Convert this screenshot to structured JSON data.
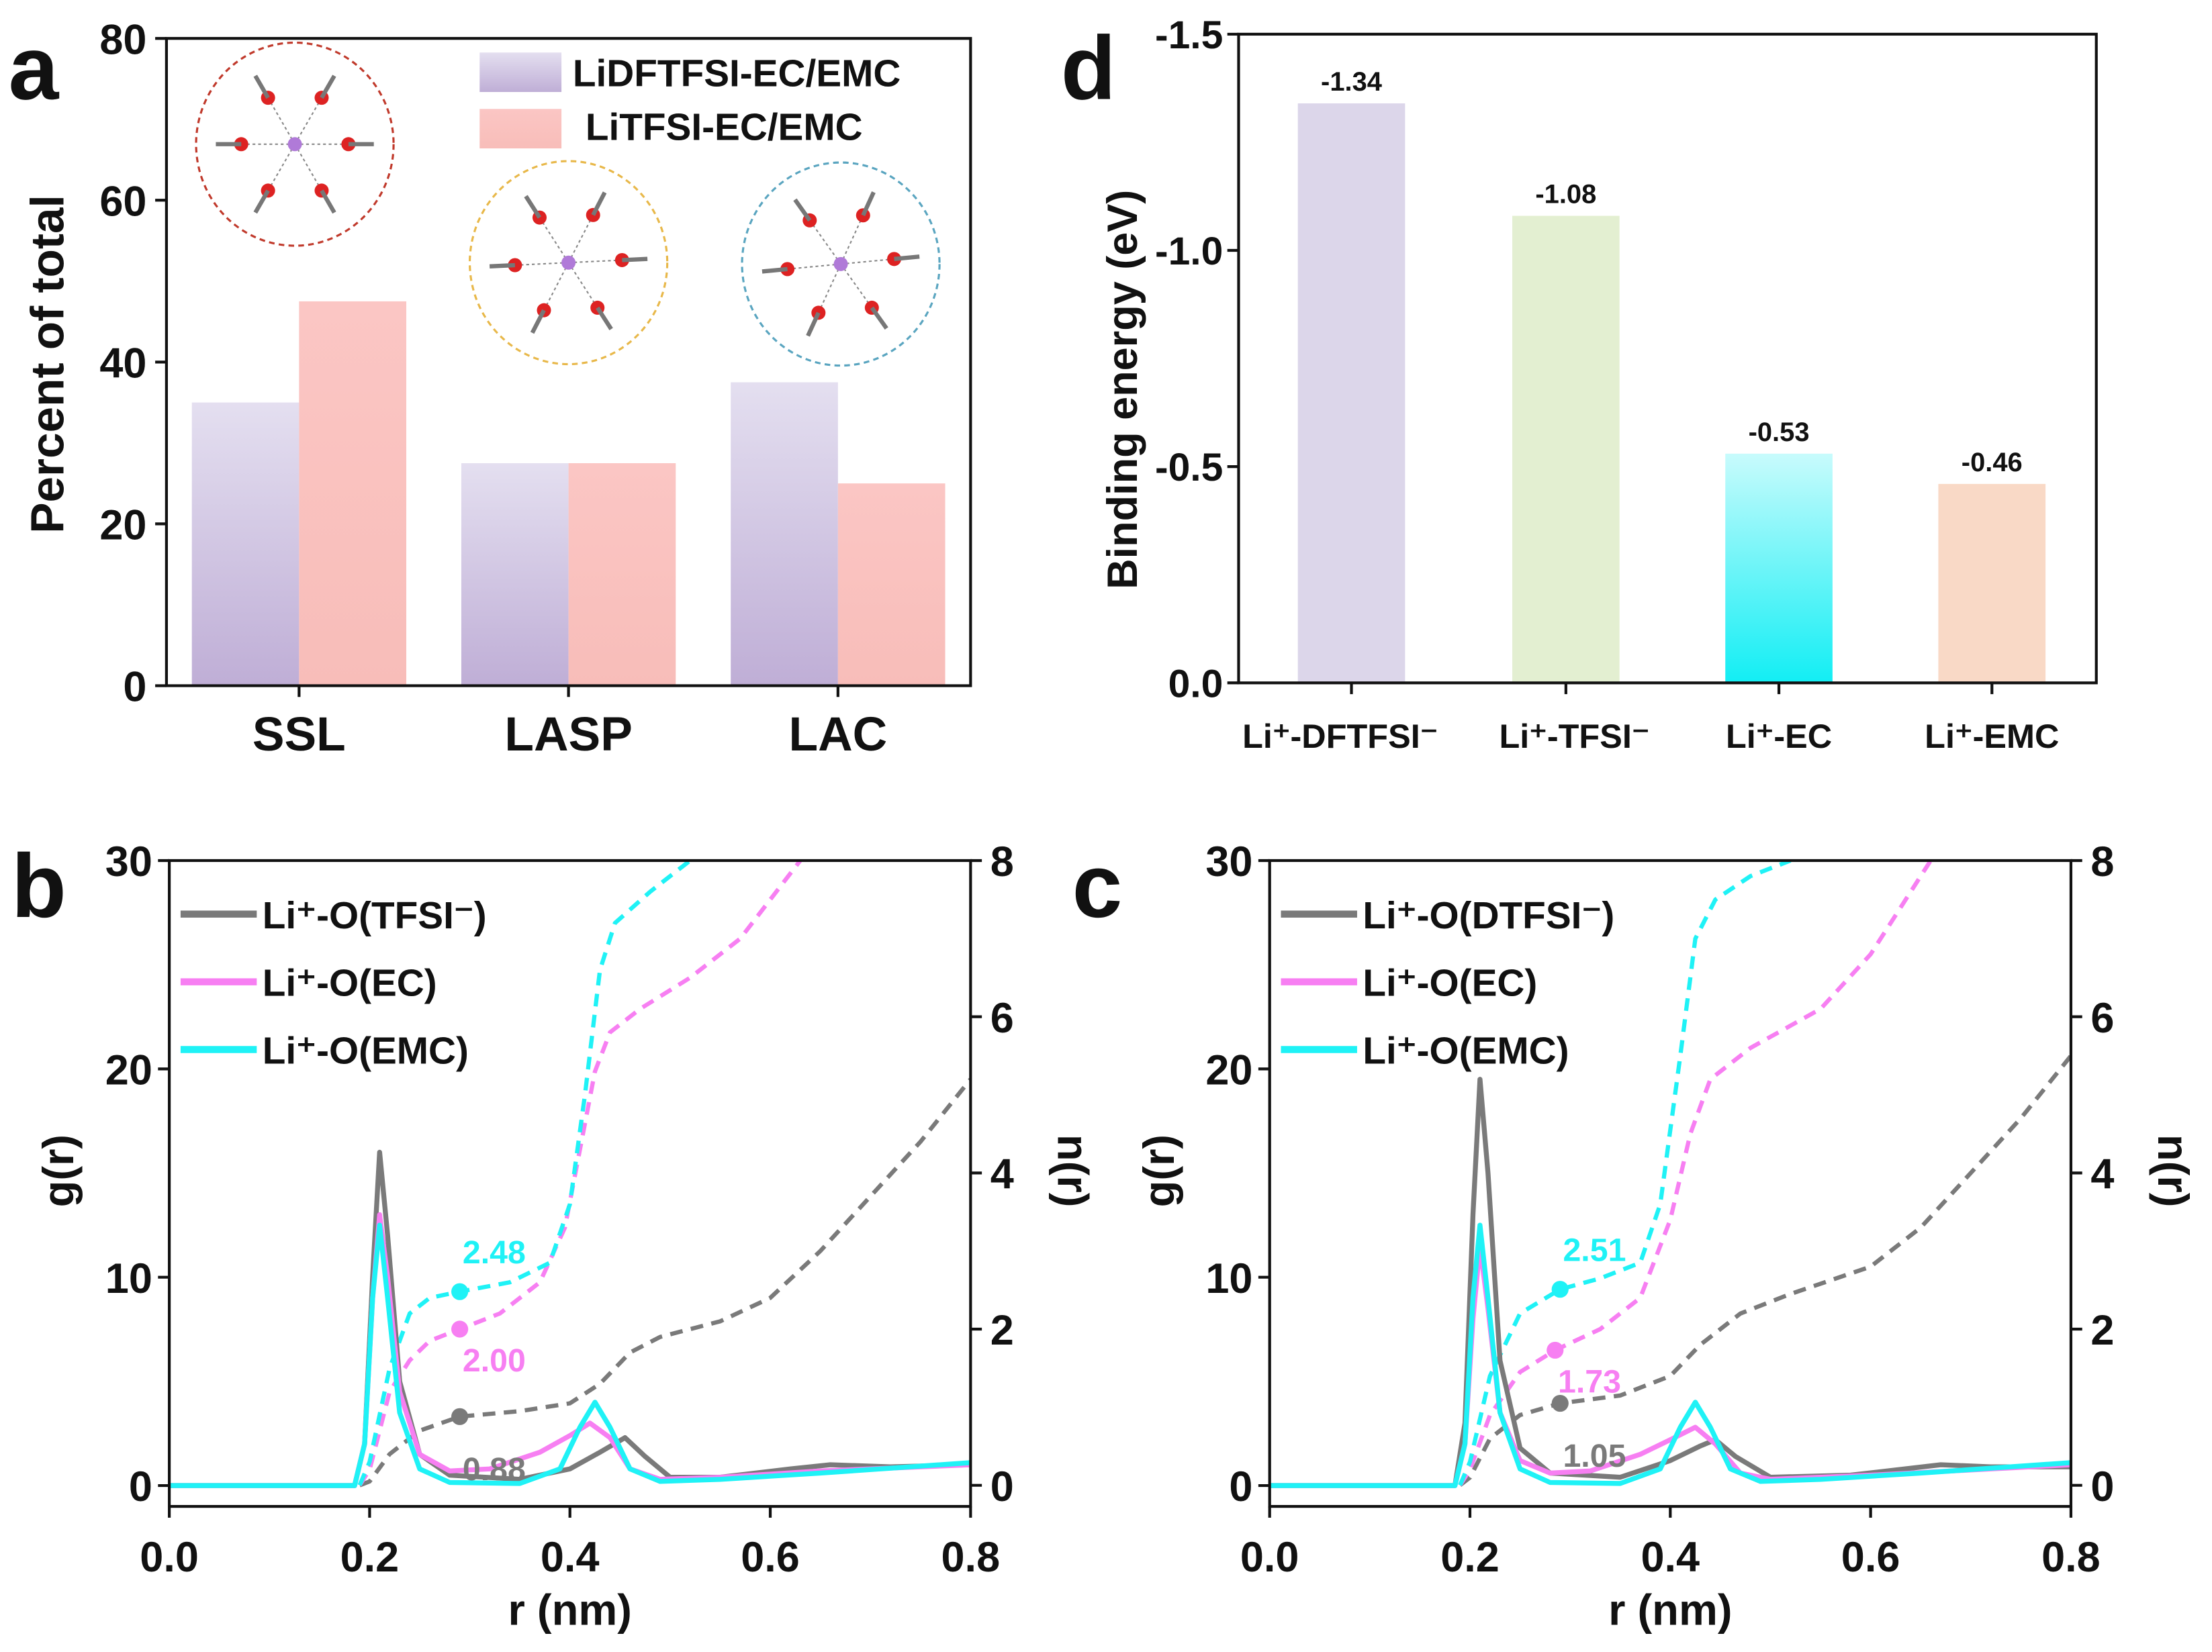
{
  "chart_data": [
    {
      "panel": "a",
      "type": "bar",
      "title": "",
      "xlabel": "",
      "ylabel": "Percent of total",
      "ylim": [
        0,
        80
      ],
      "yticks": [
        0,
        20,
        40,
        60,
        80
      ],
      "categories": [
        "SSL",
        "LASP",
        "LAC"
      ],
      "series": [
        {
          "name": "LiDFTFSI-EC/EMC",
          "values": [
            35,
            27.5,
            37.5
          ],
          "color": "#c3b2d8"
        },
        {
          "name": "LiTFSI-EC/EMC",
          "values": [
            47.5,
            27.5,
            25
          ],
          "color": "#f9c0bd"
        }
      ],
      "legend": "top-right",
      "insets": [
        "SSL solvation structure",
        "LASP solvation structure",
        "LAC solvation structure"
      ]
    },
    {
      "panel": "d",
      "type": "bar",
      "xlabel": "",
      "ylabel": "Binding energy (eV)",
      "ylim": [
        0.0,
        -1.5
      ],
      "yticks": [
        0.0,
        -0.5,
        -1.0,
        -1.5
      ],
      "ytick_labels": [
        "0.0",
        "-0.5",
        "-1.0",
        "-1.5"
      ],
      "categories": [
        "Li⁺-DFTFSI⁻",
        "Li⁺-TFSI⁻",
        "Li⁺-EC",
        "Li⁺-EMC"
      ],
      "values": [
        -1.34,
        -1.08,
        -0.53,
        -0.46
      ],
      "data_labels": [
        "-1.34",
        "-1.08",
        "-0.53",
        "-0.46"
      ],
      "colors": [
        "#dcd6ea",
        "#e3efd1",
        "#1ff2f6",
        "#f9d9c6"
      ]
    },
    {
      "panel": "b",
      "type": "line",
      "xlabel": "r (nm)",
      "ylabel": "g(r)",
      "y2label": "n(r)",
      "xlim": [
        0,
        0.8
      ],
      "ylim": [
        -1,
        30
      ],
      "y2lim": [
        -0.27,
        8
      ],
      "xticks": [
        "0.0",
        "0.2",
        "0.4",
        "0.6",
        "0.8"
      ],
      "yticks": [
        "0",
        "10",
        "20",
        "30"
      ],
      "y2ticks": [
        "0",
        "2",
        "4",
        "6",
        "8"
      ],
      "legend": "top-left",
      "series": [
        {
          "name": "Li⁺-O(TFSI⁻)",
          "color": "#7a7a7a",
          "g": [
            [
              0,
              0
            ],
            [
              0.185,
              0
            ],
            [
              0.195,
              2
            ],
            [
              0.203,
              10
            ],
            [
              0.21,
              16
            ],
            [
              0.218,
              12
            ],
            [
              0.23,
              5
            ],
            [
              0.25,
              1.5
            ],
            [
              0.28,
              0.5
            ],
            [
              0.35,
              0.3
            ],
            [
              0.4,
              0.8
            ],
            [
              0.43,
              1.6
            ],
            [
              0.455,
              2.3
            ],
            [
              0.475,
              1.4
            ],
            [
              0.5,
              0.4
            ],
            [
              0.55,
              0.4
            ],
            [
              0.62,
              0.8
            ],
            [
              0.66,
              1.0
            ],
            [
              0.72,
              0.9
            ],
            [
              0.8,
              1.0
            ]
          ],
          "n": [
            [
              0,
              0
            ],
            [
              0.19,
              0
            ],
            [
              0.2,
              0.05
            ],
            [
              0.22,
              0.4
            ],
            [
              0.25,
              0.7
            ],
            [
              0.29,
              0.88
            ],
            [
              0.35,
              0.95
            ],
            [
              0.4,
              1.05
            ],
            [
              0.43,
              1.3
            ],
            [
              0.46,
              1.7
            ],
            [
              0.49,
              1.9
            ],
            [
              0.55,
              2.1
            ],
            [
              0.6,
              2.4
            ],
            [
              0.65,
              3.0
            ],
            [
              0.7,
              3.7
            ],
            [
              0.75,
              4.4
            ],
            [
              0.8,
              5.2
            ]
          ],
          "marker": {
            "r": 0.29,
            "n": 0.88,
            "label": "0.88"
          }
        },
        {
          "name": "Li⁺-O(EC)",
          "color": "#f77ff2",
          "g": [
            [
              0,
              0
            ],
            [
              0.185,
              0
            ],
            [
              0.195,
              2
            ],
            [
              0.203,
              9
            ],
            [
              0.21,
              13
            ],
            [
              0.218,
              10
            ],
            [
              0.23,
              4.5
            ],
            [
              0.25,
              1.5
            ],
            [
              0.28,
              0.7
            ],
            [
              0.32,
              0.8
            ],
            [
              0.37,
              1.6
            ],
            [
              0.4,
              2.4
            ],
            [
              0.42,
              3.0
            ],
            [
              0.44,
              2.3
            ],
            [
              0.46,
              0.8
            ],
            [
              0.49,
              0.3
            ],
            [
              0.55,
              0.4
            ],
            [
              0.65,
              0.7
            ],
            [
              0.8,
              1.0
            ]
          ],
          "n": [
            [
              0,
              0
            ],
            [
              0.19,
              0
            ],
            [
              0.2,
              0.2
            ],
            [
              0.22,
              1.2
            ],
            [
              0.24,
              1.6
            ],
            [
              0.26,
              1.85
            ],
            [
              0.29,
              2.0
            ],
            [
              0.33,
              2.2
            ],
            [
              0.37,
              2.6
            ],
            [
              0.395,
              3.3
            ],
            [
              0.41,
              4.3
            ],
            [
              0.425,
              5.3
            ],
            [
              0.44,
              5.8
            ],
            [
              0.47,
              6.1
            ],
            [
              0.52,
              6.5
            ],
            [
              0.57,
              7.0
            ],
            [
              0.63,
              8.0
            ]
          ],
          "marker": {
            "r": 0.29,
            "n": 2.0,
            "label": "2.00"
          }
        },
        {
          "name": "Li⁺-O(EMC)",
          "color": "#1ff2f6",
          "g": [
            [
              0,
              0
            ],
            [
              0.185,
              0
            ],
            [
              0.195,
              2
            ],
            [
              0.203,
              9
            ],
            [
              0.21,
              12.5
            ],
            [
              0.218,
              9
            ],
            [
              0.23,
              3.5
            ],
            [
              0.25,
              0.8
            ],
            [
              0.28,
              0.15
            ],
            [
              0.35,
              0.1
            ],
            [
              0.39,
              0.8
            ],
            [
              0.41,
              2.8
            ],
            [
              0.425,
              4.0
            ],
            [
              0.44,
              2.8
            ],
            [
              0.46,
              0.8
            ],
            [
              0.49,
              0.2
            ],
            [
              0.55,
              0.3
            ],
            [
              0.65,
              0.6
            ],
            [
              0.8,
              1.1
            ]
          ],
          "n": [
            [
              0,
              0
            ],
            [
              0.19,
              0
            ],
            [
              0.2,
              0.3
            ],
            [
              0.22,
              1.5
            ],
            [
              0.24,
              2.2
            ],
            [
              0.26,
              2.4
            ],
            [
              0.29,
              2.48
            ],
            [
              0.34,
              2.6
            ],
            [
              0.38,
              2.85
            ],
            [
              0.4,
              3.6
            ],
            [
              0.415,
              5.0
            ],
            [
              0.43,
              6.6
            ],
            [
              0.445,
              7.2
            ],
            [
              0.48,
              7.6
            ],
            [
              0.52,
              8.0
            ]
          ],
          "marker": {
            "r": 0.29,
            "n": 2.48,
            "label": "2.48"
          }
        }
      ]
    },
    {
      "panel": "c",
      "type": "line",
      "xlabel": "r (nm)",
      "ylabel": "g(r)",
      "y2label": "n(r)",
      "xlim": [
        0,
        0.8
      ],
      "ylim": [
        -1,
        30
      ],
      "y2lim": [
        -0.27,
        8
      ],
      "xticks": [
        "0.0",
        "0.2",
        "0.4",
        "0.6",
        "0.8"
      ],
      "yticks": [
        "0",
        "10",
        "20",
        "30"
      ],
      "y2ticks": [
        "0",
        "2",
        "4",
        "6",
        "8"
      ],
      "legend": "top-left",
      "series": [
        {
          "name": "Li⁺-O(DTFSI⁻)",
          "color": "#7a7a7a",
          "g": [
            [
              0,
              0
            ],
            [
              0.185,
              0
            ],
            [
              0.195,
              3
            ],
            [
              0.203,
              13
            ],
            [
              0.21,
              19.5
            ],
            [
              0.218,
              15
            ],
            [
              0.23,
              6
            ],
            [
              0.25,
              1.8
            ],
            [
              0.28,
              0.6
            ],
            [
              0.35,
              0.4
            ],
            [
              0.4,
              1.2
            ],
            [
              0.43,
              1.9
            ],
            [
              0.445,
              2.2
            ],
            [
              0.465,
              1.4
            ],
            [
              0.5,
              0.4
            ],
            [
              0.58,
              0.5
            ],
            [
              0.67,
              1.0
            ],
            [
              0.72,
              0.9
            ],
            [
              0.8,
              0.9
            ]
          ],
          "n": [
            [
              0,
              0
            ],
            [
              0.19,
              0
            ],
            [
              0.2,
              0.1
            ],
            [
              0.22,
              0.6
            ],
            [
              0.25,
              0.9
            ],
            [
              0.29,
              1.05
            ],
            [
              0.35,
              1.15
            ],
            [
              0.4,
              1.4
            ],
            [
              0.43,
              1.8
            ],
            [
              0.47,
              2.2
            ],
            [
              0.52,
              2.45
            ],
            [
              0.6,
              2.8
            ],
            [
              0.65,
              3.3
            ],
            [
              0.7,
              4.0
            ],
            [
              0.75,
              4.7
            ],
            [
              0.8,
              5.5
            ]
          ],
          "marker": {
            "r": 0.29,
            "n": 1.05,
            "label": "1.05"
          }
        },
        {
          "name": "Li⁺-O(EC)",
          "color": "#f77ff2",
          "g": [
            [
              0,
              0
            ],
            [
              0.185,
              0
            ],
            [
              0.195,
              2
            ],
            [
              0.203,
              8
            ],
            [
              0.21,
              11.5
            ],
            [
              0.218,
              8.5
            ],
            [
              0.23,
              3.5
            ],
            [
              0.25,
              1.2
            ],
            [
              0.28,
              0.6
            ],
            [
              0.32,
              0.7
            ],
            [
              0.37,
              1.5
            ],
            [
              0.4,
              2.2
            ],
            [
              0.425,
              2.8
            ],
            [
              0.445,
              2.0
            ],
            [
              0.47,
              0.6
            ],
            [
              0.5,
              0.3
            ],
            [
              0.6,
              0.5
            ],
            [
              0.8,
              1.0
            ]
          ],
          "n": [
            [
              0,
              0
            ],
            [
              0.19,
              0
            ],
            [
              0.2,
              0.2
            ],
            [
              0.22,
              0.9
            ],
            [
              0.25,
              1.45
            ],
            [
              0.285,
              1.73
            ],
            [
              0.33,
              2.0
            ],
            [
              0.37,
              2.4
            ],
            [
              0.4,
              3.4
            ],
            [
              0.42,
              4.5
            ],
            [
              0.44,
              5.2
            ],
            [
              0.48,
              5.6
            ],
            [
              0.55,
              6.1
            ],
            [
              0.6,
              6.8
            ],
            [
              0.66,
              8.0
            ]
          ],
          "marker": {
            "r": 0.285,
            "n": 1.73,
            "label": "1.73"
          }
        },
        {
          "name": "Li⁺-O(EMC)",
          "color": "#1ff2f6",
          "g": [
            [
              0,
              0
            ],
            [
              0.185,
              0
            ],
            [
              0.195,
              2
            ],
            [
              0.203,
              9
            ],
            [
              0.21,
              12.5
            ],
            [
              0.218,
              9
            ],
            [
              0.23,
              3.5
            ],
            [
              0.25,
              0.8
            ],
            [
              0.28,
              0.15
            ],
            [
              0.35,
              0.1
            ],
            [
              0.39,
              0.8
            ],
            [
              0.41,
              2.8
            ],
            [
              0.425,
              4.0
            ],
            [
              0.44,
              2.8
            ],
            [
              0.46,
              0.8
            ],
            [
              0.49,
              0.2
            ],
            [
              0.55,
              0.3
            ],
            [
              0.65,
              0.6
            ],
            [
              0.8,
              1.1
            ]
          ],
          "n": [
            [
              0,
              0
            ],
            [
              0.19,
              0
            ],
            [
              0.2,
              0.3
            ],
            [
              0.22,
              1.4
            ],
            [
              0.25,
              2.2
            ],
            [
              0.29,
              2.51
            ],
            [
              0.33,
              2.65
            ],
            [
              0.37,
              2.85
            ],
            [
              0.39,
              3.6
            ],
            [
              0.41,
              5.5
            ],
            [
              0.425,
              7.0
            ],
            [
              0.445,
              7.5
            ],
            [
              0.48,
              7.8
            ],
            [
              0.52,
              8.0
            ]
          ],
          "marker": {
            "r": 0.29,
            "n": 2.51,
            "label": "2.51"
          }
        }
      ]
    }
  ],
  "panel_labels": [
    "a",
    "b",
    "c",
    "d"
  ]
}
